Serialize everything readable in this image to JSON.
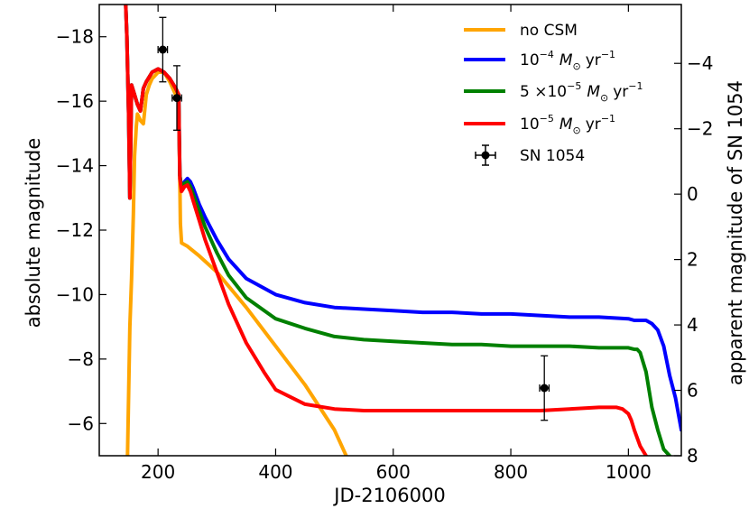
{
  "chart_data": {
    "type": "line",
    "xlabel": "JD-2106000",
    "ylabel": "absolute magnitude",
    "y2label": "apparent magnitude of SN 1054",
    "xlim": [
      100,
      1090
    ],
    "ylim": [
      -5,
      -19
    ],
    "y2lim": [
      8,
      -5.8
    ],
    "xticks": [
      200,
      400,
      600,
      800,
      1000
    ],
    "yticks": [
      -18,
      -16,
      -14,
      -12,
      -10,
      -8,
      -6
    ],
    "y2ticks": [
      -4,
      -2,
      0,
      2,
      4,
      6,
      8
    ],
    "grid": false,
    "legend_position": "top-right",
    "series": [
      {
        "name": "no CSM",
        "color": "#ffa500",
        "x": [
          148,
          150,
          152,
          155,
          158,
          160,
          161,
          162,
          163,
          165,
          170,
          175,
          180,
          185,
          190,
          195,
          200,
          210,
          220,
          230,
          235,
          237,
          238,
          240,
          250,
          270,
          300,
          350,
          400,
          450,
          500,
          520
        ],
        "y": [
          -5,
          -7,
          -9,
          -10.5,
          -12.5,
          -14.3,
          -14.6,
          -14.9,
          -15.2,
          -15.6,
          -15.4,
          -15.3,
          -16.2,
          -16.5,
          -16.7,
          -16.8,
          -16.9,
          -16.9,
          -16.6,
          -16.2,
          -16.0,
          -13.5,
          -12.2,
          -11.6,
          -11.5,
          -11.2,
          -10.7,
          -9.6,
          -8.4,
          -7.2,
          -5.8,
          -5.0
        ]
      },
      {
        "name": "10^-4 M_sun yr^-1",
        "label_parts": [
          "10",
          "−4",
          "M",
          "⊙",
          "yr",
          "−1"
        ],
        "color": "#0000ff",
        "x": [
          145,
          147,
          150,
          152,
          155,
          160,
          165,
          170,
          175,
          180,
          190,
          200,
          210,
          220,
          230,
          235,
          237,
          240,
          245,
          250,
          255,
          260,
          270,
          280,
          300,
          320,
          350,
          400,
          450,
          500,
          550,
          600,
          650,
          700,
          750,
          800,
          850,
          900,
          950,
          1000,
          1010,
          1020,
          1030,
          1040,
          1050,
          1060,
          1070,
          1080,
          1090
        ],
        "y": [
          -19,
          -18,
          -15.5,
          -13,
          -16.5,
          -16.2,
          -15.9,
          -15.7,
          -16.4,
          -16.6,
          -16.9,
          -17.0,
          -16.9,
          -16.7,
          -16.4,
          -16.2,
          -13.7,
          -13.3,
          -13.5,
          -13.6,
          -13.5,
          -13.3,
          -12.8,
          -12.4,
          -11.7,
          -11.1,
          -10.5,
          -10.0,
          -9.75,
          -9.6,
          -9.55,
          -9.5,
          -9.45,
          -9.45,
          -9.4,
          -9.4,
          -9.35,
          -9.3,
          -9.3,
          -9.25,
          -9.2,
          -9.2,
          -9.2,
          -9.1,
          -8.9,
          -8.4,
          -7.5,
          -6.8,
          -5.8
        ]
      },
      {
        "name": "5 ×10^-5 M_sun yr^-1",
        "label_parts": [
          "5 ×10",
          "−5",
          "M",
          "⊙",
          "yr",
          "−1"
        ],
        "color": "#008000",
        "x": [
          145,
          147,
          150,
          152,
          155,
          160,
          165,
          170,
          175,
          180,
          190,
          200,
          210,
          220,
          230,
          235,
          237,
          240,
          245,
          250,
          255,
          260,
          270,
          280,
          300,
          320,
          350,
          400,
          450,
          500,
          550,
          600,
          650,
          700,
          750,
          800,
          850,
          900,
          950,
          1000,
          1010,
          1015,
          1020,
          1030,
          1040,
          1050,
          1060,
          1070
        ],
        "y": [
          -19,
          -18,
          -15.5,
          -13,
          -16.5,
          -16.2,
          -15.9,
          -15.7,
          -16.4,
          -16.6,
          -16.9,
          -17.0,
          -16.9,
          -16.7,
          -16.4,
          -16.2,
          -13.7,
          -13.3,
          -13.45,
          -13.5,
          -13.35,
          -13.1,
          -12.6,
          -12.1,
          -11.3,
          -10.6,
          -9.9,
          -9.25,
          -8.95,
          -8.7,
          -8.6,
          -8.55,
          -8.5,
          -8.45,
          -8.45,
          -8.4,
          -8.4,
          -8.4,
          -8.35,
          -8.35,
          -8.3,
          -8.3,
          -8.2,
          -7.6,
          -6.5,
          -5.8,
          -5.2,
          -5.0
        ]
      },
      {
        "name": "10^-5 M_sun yr^-1",
        "label_parts": [
          "10",
          "−5",
          "M",
          "⊙",
          "yr",
          "−1"
        ],
        "color": "#ff0000",
        "x": [
          145,
          147,
          150,
          152,
          155,
          160,
          165,
          170,
          175,
          180,
          190,
          200,
          210,
          220,
          230,
          235,
          237,
          240,
          245,
          250,
          255,
          260,
          270,
          280,
          300,
          320,
          350,
          380,
          400,
          450,
          500,
          550,
          600,
          650,
          700,
          750,
          800,
          850,
          900,
          950,
          980,
          990,
          1000,
          1005,
          1010,
          1020,
          1030
        ],
        "y": [
          -19,
          -18,
          -15.5,
          -13,
          -16.5,
          -16.2,
          -15.9,
          -15.7,
          -16.4,
          -16.6,
          -16.9,
          -17.0,
          -16.9,
          -16.7,
          -16.4,
          -16.2,
          -13.6,
          -13.2,
          -13.35,
          -13.4,
          -13.2,
          -12.9,
          -12.3,
          -11.7,
          -10.7,
          -9.7,
          -8.5,
          -7.6,
          -7.05,
          -6.6,
          -6.45,
          -6.4,
          -6.4,
          -6.4,
          -6.4,
          -6.4,
          -6.4,
          -6.4,
          -6.45,
          -6.5,
          -6.5,
          -6.45,
          -6.3,
          -6.1,
          -5.8,
          -5.3,
          -5.0
        ]
      }
    ],
    "observations": {
      "name": "SN 1054",
      "color": "#000000",
      "points": [
        {
          "x": 208,
          "y": -17.6,
          "xerr": 8,
          "yerr": 1.0
        },
        {
          "x": 232,
          "y": -16.1,
          "xerr": 8,
          "yerr": 1.0
        },
        {
          "x": 857,
          "y": -7.1,
          "xerr": 8,
          "yerr": 1.0
        }
      ]
    }
  }
}
